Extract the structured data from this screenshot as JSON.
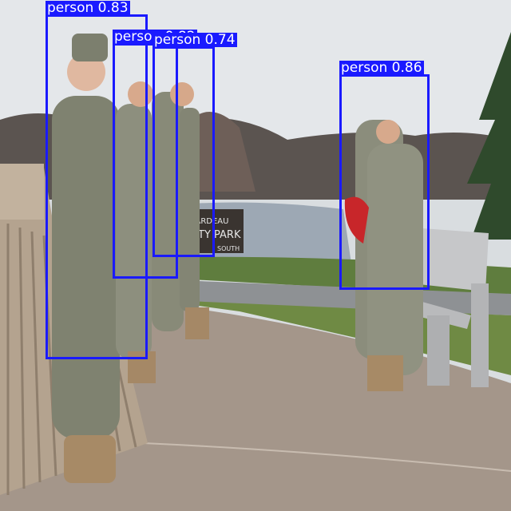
{
  "scene": {
    "photo_description_icon": "outdoor-soldiers-photo",
    "sign_text": {
      "line1": "IRARDEAU",
      "line2": "TY PARK",
      "line3": "SOUTH"
    }
  },
  "detection_style": {
    "box_color": "#1a1aff",
    "label_bg": "#1a1aff",
    "label_text_color": "#ffffff"
  },
  "detections": [
    {
      "id": "d1",
      "label": "person 0.83",
      "class": "person",
      "confidence": 0.83
    },
    {
      "id": "d2",
      "label": "person 0.82",
      "class": "person",
      "confidence": 0.82
    },
    {
      "id": "d3",
      "label": "person 0.74",
      "class": "person",
      "confidence": 0.74
    },
    {
      "id": "d4",
      "label": "person 0.86",
      "class": "person",
      "confidence": 0.86
    }
  ]
}
